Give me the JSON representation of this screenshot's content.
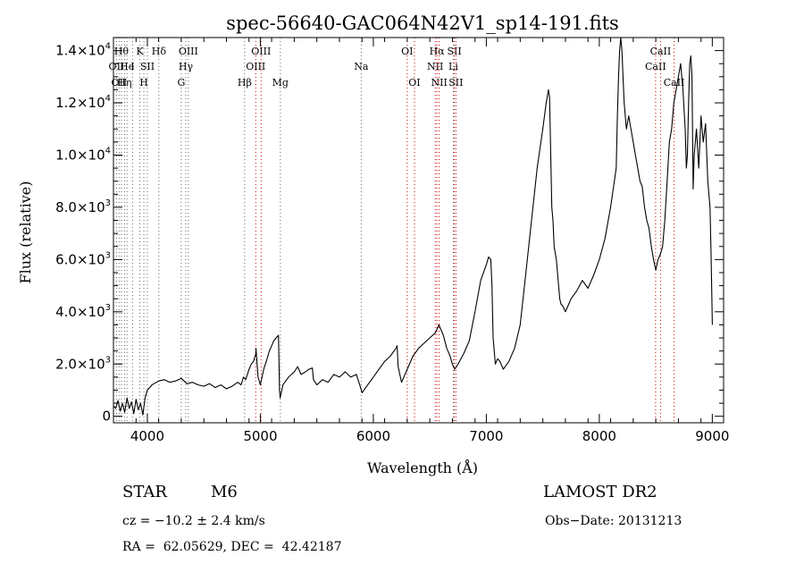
{
  "chart_data": {
    "type": "line",
    "title": "spec-56640-GAC064N42V1_sp14-191.fits",
    "xlabel": "Wavelength (Å)",
    "ylabel": "Flux (relative)",
    "xlim": [
      3700,
      9100
    ],
    "ylim": [
      -250,
      14500
    ],
    "x_ticks": [
      {
        "value": 4000,
        "label": "4000"
      },
      {
        "value": 5000,
        "label": "5000"
      },
      {
        "value": 6000,
        "label": "6000"
      },
      {
        "value": 7000,
        "label": "7000"
      },
      {
        "value": 8000,
        "label": "8000"
      },
      {
        "value": 9000,
        "label": "9000"
      }
    ],
    "y_ticks": [
      {
        "value": 0,
        "mant": "0",
        "exp": ""
      },
      {
        "value": 2000,
        "mant": "2.0×10",
        "exp": "3"
      },
      {
        "value": 4000,
        "mant": "4.0×10",
        "exp": "3"
      },
      {
        "value": 6000,
        "mant": "6.0×10",
        "exp": "3"
      },
      {
        "value": 8000,
        "mant": "8.0×10",
        "exp": "3"
      },
      {
        "value": 10000,
        "mant": "1.0×10",
        "exp": "4"
      },
      {
        "value": 12000,
        "mant": "1.2×10",
        "exp": "4"
      },
      {
        "value": 14000,
        "mant": "1.4×10",
        "exp": "4"
      }
    ],
    "series": [
      {
        "x": [
          3700,
          3720,
          3740,
          3760,
          3780,
          3800,
          3820,
          3840,
          3860,
          3880,
          3900,
          3920,
          3940,
          3960,
          3980,
          4000,
          4020,
          4040,
          4060,
          4080,
          4100,
          4150,
          4200,
          4250,
          4300,
          4350,
          4400,
          4450,
          4500,
          4550,
          4600,
          4650,
          4700,
          4750,
          4800,
          4830,
          4850,
          4870,
          4900,
          4920,
          4940,
          4960,
          4961,
          4980,
          5000,
          5030,
          5060,
          5080,
          5100,
          5120,
          5140,
          5160,
          5170,
          5175,
          5200,
          5250,
          5300,
          5330,
          5360,
          5400,
          5430,
          5460,
          5470,
          5500,
          5550,
          5600,
          5650,
          5700,
          5750,
          5800,
          5850,
          5880,
          5900,
          5950,
          6000,
          6050,
          6100,
          6150,
          6200,
          6210,
          6220,
          6250,
          6300,
          6350,
          6400,
          6450,
          6500,
          6550,
          6580,
          6600,
          6620,
          6650,
          6680,
          6700,
          6720,
          6750,
          6800,
          6850,
          6900,
          6950,
          7000,
          7020,
          7040,
          7050,
          7060,
          7080,
          7100,
          7120,
          7150,
          7200,
          7250,
          7300,
          7350,
          7400,
          7450,
          7500,
          7530,
          7550,
          7560,
          7570,
          7580,
          7590,
          7600,
          7620,
          7640,
          7650,
          7660,
          7680,
          7700,
          7750,
          7800,
          7850,
          7900,
          7950,
          8000,
          8050,
          8100,
          8150,
          8160,
          8170,
          8180,
          8190,
          8200,
          8210,
          8220,
          8240,
          8260,
          8280,
          8300,
          8320,
          8340,
          8360,
          8380,
          8400,
          8420,
          8440,
          8460,
          8480,
          8500,
          8520,
          8540,
          8560,
          8580,
          8600,
          8620,
          8640,
          8660,
          8680,
          8700,
          8720,
          8740,
          8760,
          8770,
          8780,
          8790,
          8800,
          8810,
          8820,
          8830,
          8840,
          8860,
          8880,
          8900,
          8920,
          8940,
          8960,
          8980,
          8990,
          9000
        ],
        "y": [
          400,
          300,
          600,
          200,
          500,
          150,
          700,
          300,
          550,
          100,
          650,
          250,
          500,
          50,
          700,
          1000,
          1100,
          1200,
          1250,
          1300,
          1350,
          1400,
          1300,
          1350,
          1450,
          1250,
          1300,
          1200,
          1150,
          1250,
          1100,
          1200,
          1050,
          1150,
          1300,
          1200,
          1500,
          1400,
          1800,
          2000,
          2100,
          2400,
          2600,
          1500,
          1200,
          1800,
          2200,
          2500,
          2700,
          2900,
          3000,
          3100,
          1000,
          700,
          1200,
          1500,
          1700,
          1900,
          1600,
          1700,
          1800,
          1850,
          1400,
          1200,
          1400,
          1300,
          1600,
          1500,
          1700,
          1500,
          1600,
          1200,
          900,
          1200,
          1500,
          1800,
          2100,
          2300,
          2600,
          2700,
          1900,
          1300,
          1800,
          2300,
          2600,
          2800,
          3000,
          3200,
          3500,
          3300,
          3100,
          2600,
          2300,
          2000,
          1800,
          2000,
          2400,
          2900,
          4000,
          5200,
          5800,
          6100,
          6000,
          5000,
          3000,
          2000,
          2200,
          2100,
          1800,
          2100,
          2600,
          3500,
          5500,
          7500,
          9500,
          11000,
          12000,
          12500,
          12200,
          10000,
          8000,
          7500,
          6500,
          6000,
          5000,
          4500,
          4300,
          4200,
          4000,
          4500,
          4800,
          5200,
          4900,
          5400,
          6000,
          6800,
          8000,
          9500,
          11500,
          13000,
          14000,
          14500,
          14000,
          13000,
          12000,
          11000,
          11500,
          11000,
          10500,
          10000,
          9500,
          9000,
          8800,
          8000,
          7500,
          7200,
          6500,
          6000,
          5600,
          6000,
          6200,
          6500,
          7500,
          9000,
          10500,
          11000,
          12000,
          12500,
          13000,
          13500,
          12500,
          11000,
          9500,
          10000,
          12000,
          13500,
          13800,
          13000,
          8700,
          10000,
          11000,
          9500,
          11500,
          10500,
          11200,
          9000,
          8000,
          6000,
          3500
        ]
      }
    ],
    "spectral_lines": [
      {
        "x": 3727,
        "label": "OII",
        "row": 1,
        "color": "#666666"
      },
      {
        "x": 3750,
        "label": "OII",
        "row": 2,
        "color": "#666666"
      },
      {
        "x": 3770,
        "label": "Hθ",
        "row": 0,
        "color": "#666666"
      },
      {
        "x": 3798,
        "label": "Hη",
        "row": 2,
        "color": "#666666"
      },
      {
        "x": 3820,
        "label": "He",
        "row": 1,
        "color": "#666666"
      },
      {
        "x": 3869,
        "label": "I",
        "row": 1,
        "color": "#666666"
      },
      {
        "x": 3934,
        "label": "K",
        "row": 0,
        "color": "#666666"
      },
      {
        "x": 3969,
        "label": "H",
        "row": 2,
        "color": "#666666"
      },
      {
        "x": 4000,
        "label": "SII",
        "row": 1,
        "color": "#666666"
      },
      {
        "x": 4102,
        "label": "Hδ",
        "row": 0,
        "color": "#666666"
      },
      {
        "x": 4300,
        "label": "G",
        "row": 2,
        "color": "#666666"
      },
      {
        "x": 4340,
        "label": "Hγ",
        "row": 1,
        "color": "#666666"
      },
      {
        "x": 4363,
        "label": "OIII",
        "row": 0,
        "color": "#666666"
      },
      {
        "x": 4861,
        "label": "Hβ",
        "row": 2,
        "color": "#666666"
      },
      {
        "x": 4959,
        "label": "OIII",
        "row": 1,
        "color": "#cc0000"
      },
      {
        "x": 5007,
        "label": "OIII",
        "row": 0,
        "color": "#cc0000"
      },
      {
        "x": 5177,
        "label": "Mg",
        "row": 2,
        "color": "#666666"
      },
      {
        "x": 5893,
        "label": "Na",
        "row": 1,
        "color": "#666666"
      },
      {
        "x": 6300,
        "label": "OI",
        "row": 0,
        "color": "#cc0000"
      },
      {
        "x": 6364,
        "label": "OI",
        "row": 2,
        "color": "#cc0000"
      },
      {
        "x": 6548,
        "label": "NII",
        "row": 1,
        "color": "#cc0000"
      },
      {
        "x": 6563,
        "label": "Hα",
        "row": 0,
        "color": "#cc0000"
      },
      {
        "x": 6583,
        "label": "NII",
        "row": 2,
        "color": "#cc0000"
      },
      {
        "x": 6708,
        "label": "Li",
        "row": 1,
        "color": "#666666"
      },
      {
        "x": 6717,
        "label": "SII",
        "row": 0,
        "color": "#cc0000"
      },
      {
        "x": 6731,
        "label": "SII",
        "row": 2,
        "color": "#cc0000"
      },
      {
        "x": 8498,
        "label": "CaII",
        "row": 1,
        "color": "#cc0000"
      },
      {
        "x": 8542,
        "label": "CaII",
        "row": 0,
        "color": "#cc0000"
      },
      {
        "x": 8662,
        "label": "CaII",
        "row": 2,
        "color": "#cc0000"
      }
    ],
    "grid": false,
    "legend": "none"
  },
  "footer": {
    "class_label": "STAR",
    "subclass": "M6",
    "survey": "LAMOST DR2",
    "cz": "cz = −10.2 ± 2.4 km/s",
    "obs_date": "Obs−Date: 20131213",
    "coords": "RA =  62.05629, DEC =  42.42187"
  }
}
